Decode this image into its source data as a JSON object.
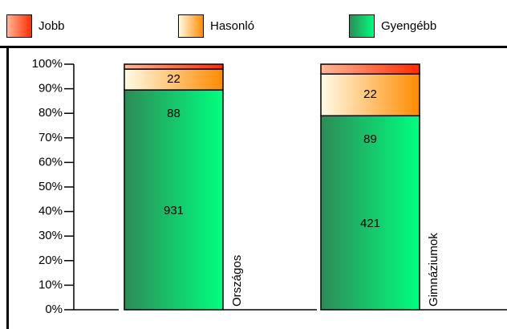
{
  "chart_data": {
    "type": "stacked_bar",
    "categories": [
      "Országos",
      "Gimnáziumok"
    ],
    "series": [
      {
        "name": "Jobb",
        "color": [
          "#ffb899",
          "#ff2a00"
        ],
        "values": [
          2,
          4
        ]
      },
      {
        "name": "Hasonló",
        "color": [
          "#fffbe6",
          "#ff8a00"
        ],
        "values": [
          8.5,
          17
        ]
      },
      {
        "name": "Gyengébb",
        "color": [
          "#2e8b57",
          "#00ff7f"
        ],
        "values": [
          89.5,
          79
        ]
      }
    ],
    "bar_labels": [
      [
        "931",
        "88",
        "22"
      ],
      [
        "421",
        "89",
        "22"
      ]
    ],
    "ylim": [
      0,
      100
    ],
    "yticks": [
      {
        "value": 0,
        "label": "0%"
      },
      {
        "value": 10,
        "label": "10%"
      },
      {
        "value": 20,
        "label": "20%"
      },
      {
        "value": 30,
        "label": "30%"
      },
      {
        "value": 40,
        "label": "40%"
      },
      {
        "value": 50,
        "label": "50%"
      },
      {
        "value": 60,
        "label": "60%"
      },
      {
        "value": 70,
        "label": "70%"
      },
      {
        "value": 80,
        "label": "80%"
      },
      {
        "value": 90,
        "label": "90%"
      },
      {
        "value": 100,
        "label": "100%"
      }
    ],
    "legend": "top"
  }
}
